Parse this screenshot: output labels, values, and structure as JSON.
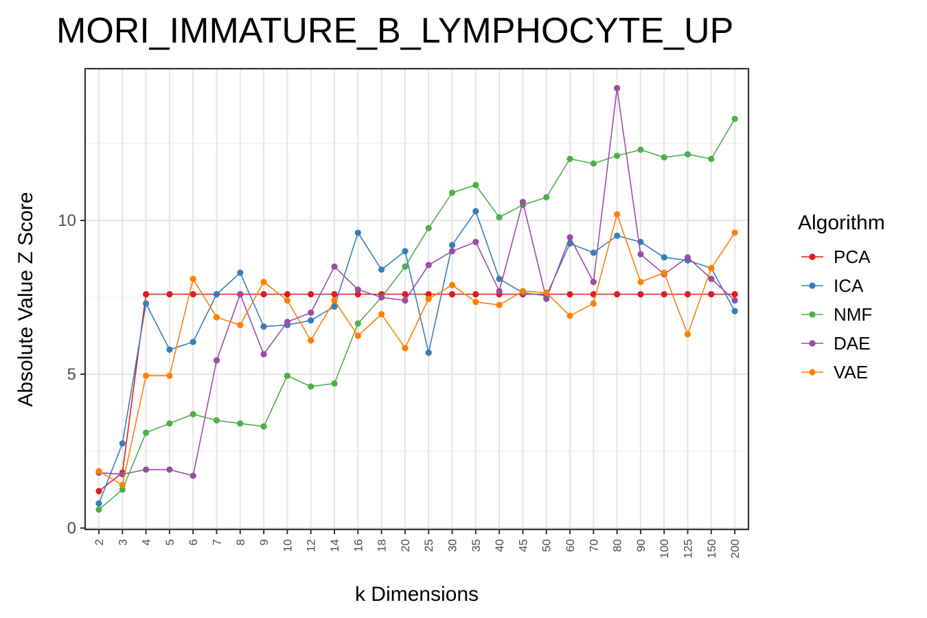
{
  "chart_data": {
    "type": "line",
    "title": "MORI_IMMATURE_B_LYMPHOCYTE_UP",
    "xlabel": "k Dimensions",
    "ylabel": "Absolute Value Z Score",
    "categories": [
      "2",
      "3",
      "4",
      "5",
      "6",
      "7",
      "8",
      "9",
      "10",
      "12",
      "14",
      "16",
      "18",
      "20",
      "25",
      "30",
      "35",
      "40",
      "45",
      "50",
      "60",
      "70",
      "80",
      "90",
      "100",
      "125",
      "150",
      "200"
    ],
    "ylim": [
      0,
      15
    ],
    "yticks": [
      0,
      5,
      10
    ],
    "grid": true,
    "legend": {
      "title": "Algorithm",
      "position": "right"
    },
    "series": [
      {
        "name": "PCA",
        "color": "#E41A1C",
        "values": [
          1.2,
          1.8,
          7.6,
          7.6,
          7.6,
          7.6,
          7.6,
          7.6,
          7.6,
          7.6,
          7.6,
          7.6,
          7.6,
          7.6,
          7.6,
          7.6,
          7.6,
          7.6,
          7.6,
          7.6,
          7.6,
          7.6,
          7.6,
          7.6,
          7.6,
          7.6,
          7.6,
          7.6
        ]
      },
      {
        "name": "ICA",
        "color": "#377EB8",
        "values": [
          0.8,
          2.75,
          7.3,
          5.8,
          6.05,
          7.6,
          8.3,
          6.55,
          6.6,
          6.75,
          7.2,
          9.6,
          8.4,
          9.0,
          5.7,
          9.2,
          10.3,
          8.1,
          7.65,
          7.55,
          9.25,
          8.95,
          9.5,
          9.3,
          8.8,
          8.7,
          8.45,
          7.05
        ]
      },
      {
        "name": "NMF",
        "color": "#4DAF4A",
        "values": [
          0.6,
          1.25,
          3.1,
          3.4,
          3.7,
          3.5,
          3.4,
          3.3,
          4.95,
          4.6,
          4.7,
          6.65,
          7.5,
          8.5,
          9.75,
          10.9,
          11.15,
          10.1,
          10.5,
          10.75,
          12.0,
          11.85,
          12.1,
          12.3,
          12.05,
          12.15,
          12.0,
          13.3
        ]
      },
      {
        "name": "DAE",
        "color": "#984EA3",
        "values": [
          1.8,
          1.75,
          1.9,
          1.9,
          1.7,
          5.45,
          7.6,
          5.65,
          6.7,
          7.0,
          8.5,
          7.75,
          7.5,
          7.4,
          8.55,
          9.0,
          9.3,
          7.7,
          10.6,
          7.45,
          9.45,
          8.0,
          14.3,
          8.9,
          8.25,
          8.8,
          8.1,
          7.4
        ]
      },
      {
        "name": "VAE",
        "color": "#FF7F00",
        "values": [
          1.85,
          1.4,
          4.95,
          4.95,
          8.1,
          6.85,
          6.6,
          8.0,
          7.4,
          6.1,
          7.4,
          6.25,
          6.95,
          5.85,
          7.45,
          7.9,
          7.35,
          7.25,
          7.7,
          7.65,
          6.9,
          7.3,
          10.2,
          8.0,
          8.3,
          6.3,
          8.45,
          9.6
        ]
      }
    ]
  }
}
